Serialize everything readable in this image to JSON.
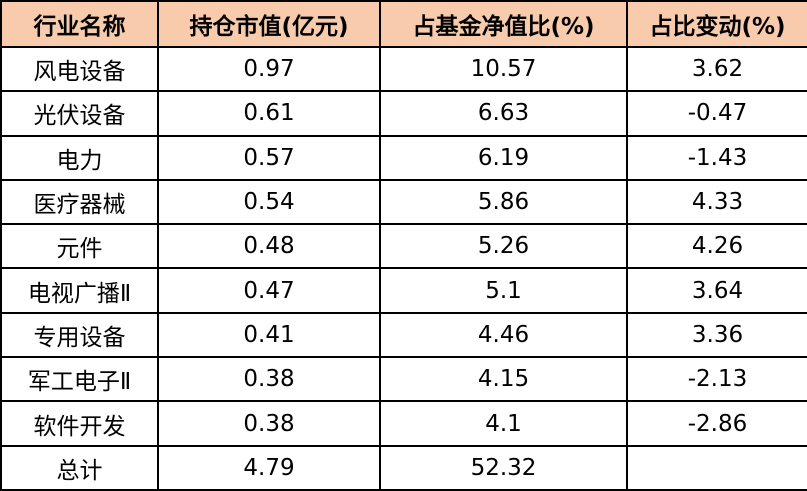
{
  "table": {
    "header": [
      "行业名称",
      "持仓市值(亿元)",
      "占基金净值比(%)",
      "占比变动(%)"
    ],
    "rows": [
      [
        "风电设备",
        "0.97",
        "10.57",
        "3.62"
      ],
      [
        "光伏设备",
        "0.61",
        "6.63",
        "-0.47"
      ],
      [
        "电力",
        "0.57",
        "6.19",
        "-1.43"
      ],
      [
        "医疗器械",
        "0.54",
        "5.86",
        "4.33"
      ],
      [
        "元件",
        "0.48",
        "5.26",
        "4.26"
      ],
      [
        "电视广播Ⅱ",
        "0.47",
        "5.1",
        "3.64"
      ],
      [
        "专用设备",
        "0.41",
        "4.46",
        "3.36"
      ],
      [
        "军工电子Ⅱ",
        "0.38",
        "4.15",
        "-2.13"
      ],
      [
        "软件开发",
        "0.38",
        "4.1",
        "-2.86"
      ],
      [
        "总计",
        "4.79",
        "52.32"
      ]
    ]
  }
}
